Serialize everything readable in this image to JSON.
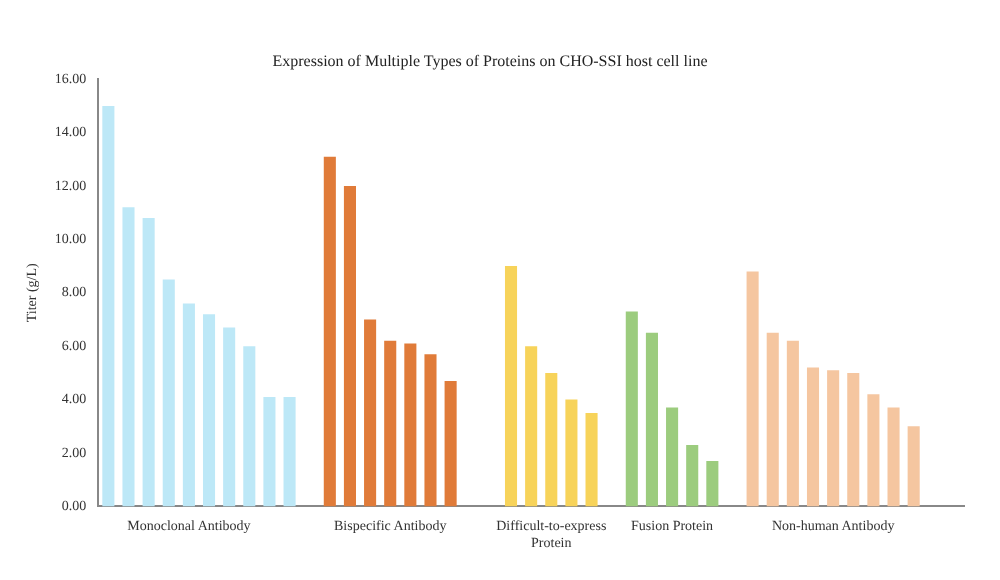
{
  "chart_data": {
    "type": "bar",
    "title": "Expression of Multiple Types of Proteins on CHO-SSI host cell line",
    "ylabel": "Titer (g/L)",
    "categories": [
      null,
      null,
      null,
      null,
      "Monoclonal Antibody",
      null,
      null,
      null,
      null,
      null,
      null,
      null,
      null,
      null,
      "Bispecific Antibody",
      null,
      null,
      null,
      null,
      null,
      null,
      null,
      "Difficult-to-express Protein",
      null,
      null,
      null,
      null,
      null,
      "Fusion Protein",
      null,
      null,
      null,
      null,
      null,
      null,
      null,
      "Non-human Antibody",
      null,
      null,
      null,
      null,
      null,
      null
    ],
    "values": [
      15.0,
      11.2,
      10.8,
      8.5,
      7.6,
      7.2,
      6.7,
      6.0,
      4.1,
      4.1,
      null,
      13.1,
      12.0,
      7.0,
      6.2,
      6.1,
      5.7,
      4.7,
      null,
      null,
      9.0,
      6.0,
      5.0,
      4.0,
      3.5,
      null,
      7.3,
      6.5,
      3.7,
      2.3,
      1.7,
      null,
      8.8,
      6.5,
      6.2,
      5.2,
      5.1,
      5.0,
      4.2,
      3.7,
      3.0,
      null,
      null
    ],
    "colors": [
      "#bde8f7",
      "#bde8f7",
      "#bde8f7",
      "#bde8f7",
      "#bde8f7",
      "#bde8f7",
      "#bde8f7",
      "#bde8f7",
      "#bde8f7",
      "#bde8f7",
      "#ffffff",
      "#e07b39",
      "#e07b39",
      "#e07b39",
      "#e07b39",
      "#e07b39",
      "#e07b39",
      "#e07b39",
      "#ffffff",
      "#ffffff",
      "#f7d35a",
      "#f7d35a",
      "#f7d35a",
      "#f7d35a",
      "#f7d35a",
      "#ffffff",
      "#9ccc7e",
      "#9ccc7e",
      "#9ccc7e",
      "#9ccc7e",
      "#9ccc7e",
      "#ffffff",
      "#f5c6a0",
      "#f5c6a0",
      "#f5c6a0",
      "#f5c6a0",
      "#f5c6a0",
      "#f5c6a0",
      "#f5c6a0",
      "#f5c6a0",
      "#f5c6a0",
      "#ffffff",
      "#ffffff"
    ],
    "ylim": [
      0,
      16
    ],
    "yticks": [
      {
        "value": 0,
        "label": "0.00"
      },
      {
        "value": 2,
        "label": "2.00"
      },
      {
        "value": 4,
        "label": "4.00"
      },
      {
        "value": 6,
        "label": "6.00"
      },
      {
        "value": 8,
        "label": "8.00"
      },
      {
        "value": 10,
        "label": "10.00"
      },
      {
        "value": 12,
        "label": "12.00"
      },
      {
        "value": 14,
        "label": "14.00"
      },
      {
        "value": 16,
        "label": "16.00"
      }
    ],
    "grid": false,
    "legend": false
  }
}
